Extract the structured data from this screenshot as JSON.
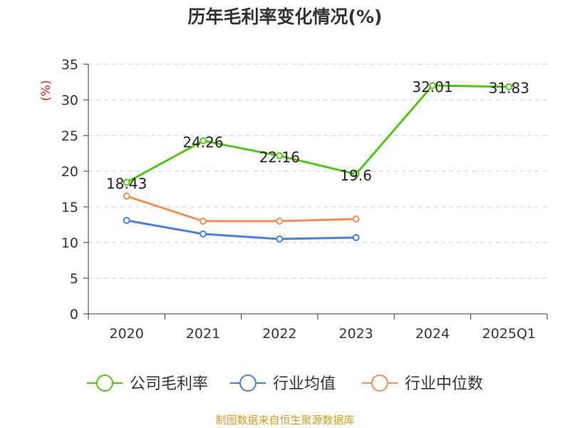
{
  "title": "历年毛利率变化情况(%)",
  "source": "制图数据来自恒生聚源数据库",
  "chart_data": {
    "type": "line",
    "title": "历年毛利率变化情况(%)",
    "ylabel": "(%)",
    "categories": [
      "2020",
      "2021",
      "2022",
      "2023",
      "2024",
      "2025Q1"
    ],
    "ylim": [
      0,
      35
    ],
    "yticks": [
      "0",
      "5",
      "10",
      "15",
      "20",
      "25",
      "30",
      "35"
    ],
    "grid": true,
    "legend_position": "bottom",
    "series": [
      {
        "name": "公司毛利率",
        "color": "#52c41a",
        "values": [
          18.43,
          24.26,
          22.16,
          19.6,
          32.01,
          31.83
        ],
        "labels": [
          "18.43",
          "24.26",
          "22.16",
          "19.6",
          "32.01",
          "31.83"
        ]
      },
      {
        "name": "行业均值",
        "color": "#4a7fdc",
        "values": [
          13.1,
          11.2,
          10.5,
          10.7,
          null,
          null
        ]
      },
      {
        "name": "行业中位数",
        "color": "#f28e56",
        "values": [
          16.5,
          13.0,
          13.0,
          13.3,
          null,
          null
        ]
      }
    ]
  }
}
